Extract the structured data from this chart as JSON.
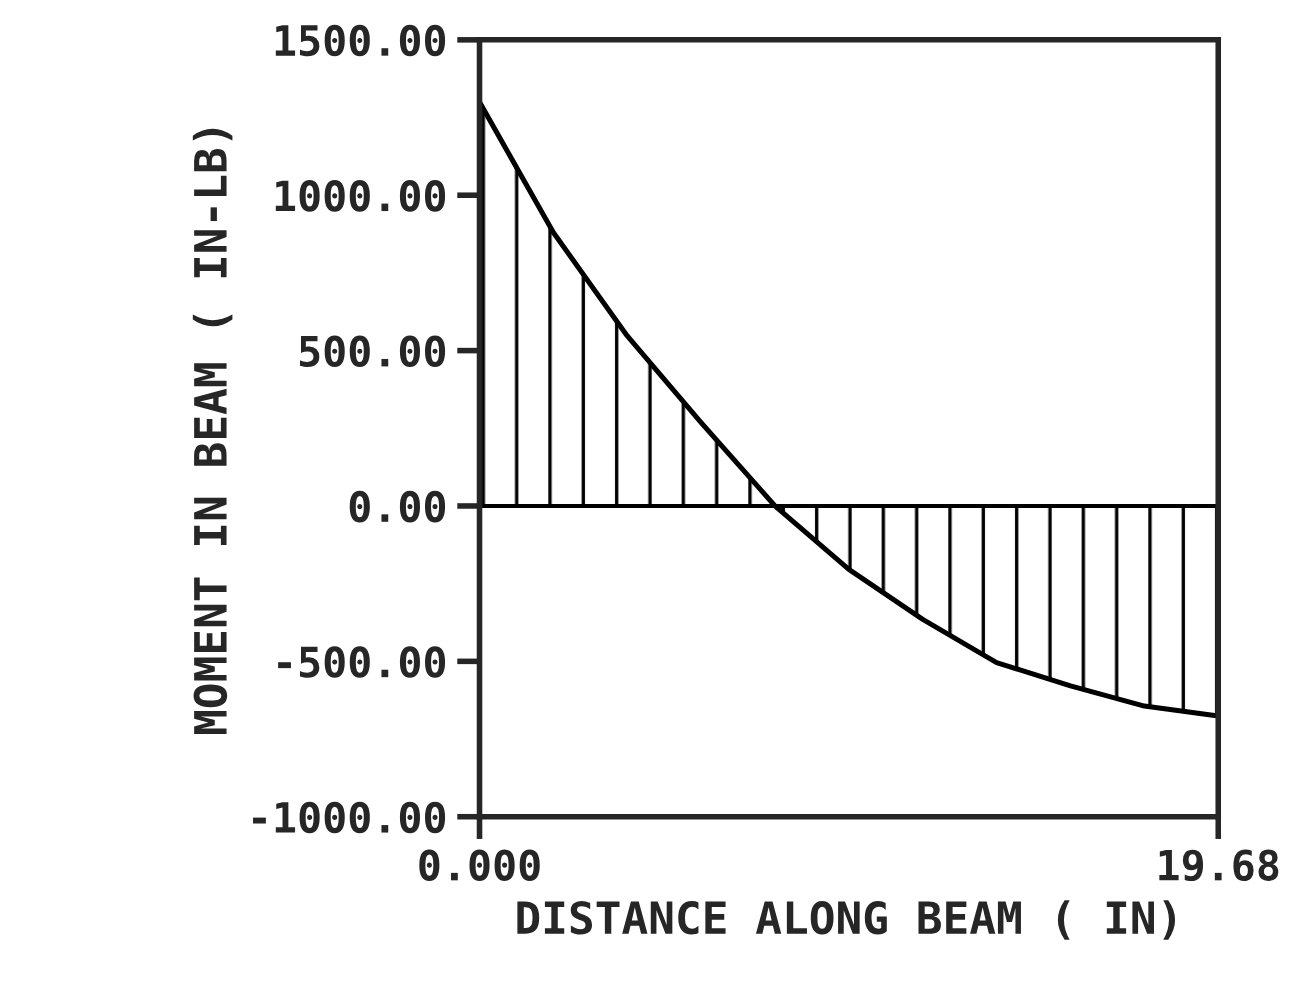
{
  "chart_data": {
    "type": "area",
    "xlabel": "DISTANCE ALONG BEAM ( IN)",
    "ylabel": "MOMENT IN BEAM ( IN-LB)",
    "x": [
      0,
      1.968,
      3.936,
      5.904,
      7.872,
      9.84,
      11.808,
      13.776,
      15.744,
      17.712,
      19.68
    ],
    "series": [
      {
        "color": "#000000",
        "values": [
          1300,
          880,
          547,
          268,
          0,
          -204,
          -365,
          -504,
          -579,
          -644,
          -676
        ]
      }
    ],
    "xlim": [
      0,
      19.68
    ],
    "xticks": [
      {
        "value": 0,
        "label": "0.000"
      },
      {
        "value": 19.68,
        "label": "19.68"
      }
    ],
    "ylim": [
      -1000,
      1500
    ],
    "yticks": [
      {
        "value": -1000,
        "label": "-1000.00"
      },
      {
        "value": -500,
        "label": "-500.00"
      },
      {
        "value": 0,
        "label": "0.00"
      },
      {
        "value": 500,
        "label": "500.00"
      },
      {
        "value": 1000,
        "label": "1000.00"
      },
      {
        "value": 1500,
        "label": "1500.00"
      }
    ],
    "ref_lines": [
      {
        "axis": "y",
        "value": 0,
        "color": "#000000"
      }
    ],
    "grid": false,
    "legend": false
  }
}
